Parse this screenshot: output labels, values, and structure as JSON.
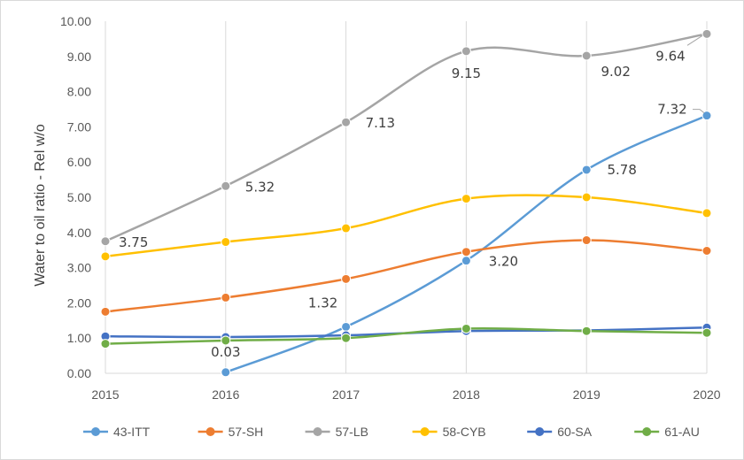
{
  "chart_data": {
    "type": "line",
    "title": "",
    "xlabel": "",
    "ylabel": "Water to oil ratio - Rel w/o",
    "x": [
      2015,
      2016,
      2017,
      2018,
      2019,
      2020
    ],
    "x_tick_labels": [
      "2015",
      "2016",
      "2017",
      "2018",
      "2019",
      "2020"
    ],
    "y_tick_labels": [
      "0.00",
      "1.00",
      "2.00",
      "3.00",
      "4.00",
      "5.00",
      "6.00",
      "7.00",
      "8.00",
      "9.00",
      "10.00"
    ],
    "xlim": [
      2015,
      2020
    ],
    "ylim": [
      0,
      10
    ],
    "grid": "vertical",
    "legend_position": "bottom",
    "smoothed": true,
    "series": [
      {
        "name": "43-ITT",
        "color": "#5b9bd5",
        "x": [
          2016,
          2017,
          2018,
          2019,
          2020
        ],
        "values": [
          0.03,
          1.32,
          3.2,
          5.78,
          7.32
        ]
      },
      {
        "name": "57-SH",
        "color": "#ed7d31",
        "x": [
          2015,
          2016,
          2017,
          2018,
          2019,
          2020
        ],
        "values": [
          1.75,
          2.15,
          2.68,
          3.45,
          3.78,
          3.48
        ]
      },
      {
        "name": "57-LB",
        "color": "#a5a5a5",
        "x": [
          2015,
          2016,
          2017,
          2018,
          2019,
          2020
        ],
        "values": [
          3.75,
          5.32,
          7.13,
          9.15,
          9.02,
          9.64
        ]
      },
      {
        "name": "58-CYB",
        "color": "#ffc000",
        "x": [
          2015,
          2016,
          2017,
          2018,
          2019,
          2020
        ],
        "values": [
          3.32,
          3.73,
          4.12,
          4.96,
          5.0,
          4.55
        ]
      },
      {
        "name": "60-SA",
        "color": "#4472c4",
        "x": [
          2015,
          2016,
          2017,
          2018,
          2019,
          2020
        ],
        "values": [
          1.05,
          1.03,
          1.08,
          1.2,
          1.22,
          1.3
        ]
      },
      {
        "name": "61-AU",
        "color": "#70ad47",
        "x": [
          2015,
          2016,
          2017,
          2018,
          2019,
          2020
        ],
        "values": [
          0.84,
          0.93,
          1.0,
          1.27,
          1.2,
          1.15
        ]
      }
    ],
    "data_labels": [
      {
        "series": "43-ITT",
        "x": 2016,
        "value": 0.03,
        "text": "0.03"
      },
      {
        "series": "43-ITT",
        "x": 2017,
        "value": 1.32,
        "text": "1.32"
      },
      {
        "series": "43-ITT",
        "x": 2018,
        "value": 3.2,
        "text": "3.20"
      },
      {
        "series": "43-ITT",
        "x": 2019,
        "value": 5.78,
        "text": "5.78"
      },
      {
        "series": "43-ITT",
        "x": 2020,
        "value": 7.32,
        "text": "7.32"
      },
      {
        "series": "57-LB",
        "x": 2015,
        "value": 3.75,
        "text": "3.75"
      },
      {
        "series": "57-LB",
        "x": 2016,
        "value": 5.32,
        "text": "5.32"
      },
      {
        "series": "57-LB",
        "x": 2017,
        "value": 7.13,
        "text": "7.13"
      },
      {
        "series": "57-LB",
        "x": 2018,
        "value": 9.15,
        "text": "9.15"
      },
      {
        "series": "57-LB",
        "x": 2019,
        "value": 9.02,
        "text": "9.02"
      },
      {
        "series": "57-LB",
        "x": 2020,
        "value": 9.64,
        "text": "9.64"
      }
    ]
  }
}
